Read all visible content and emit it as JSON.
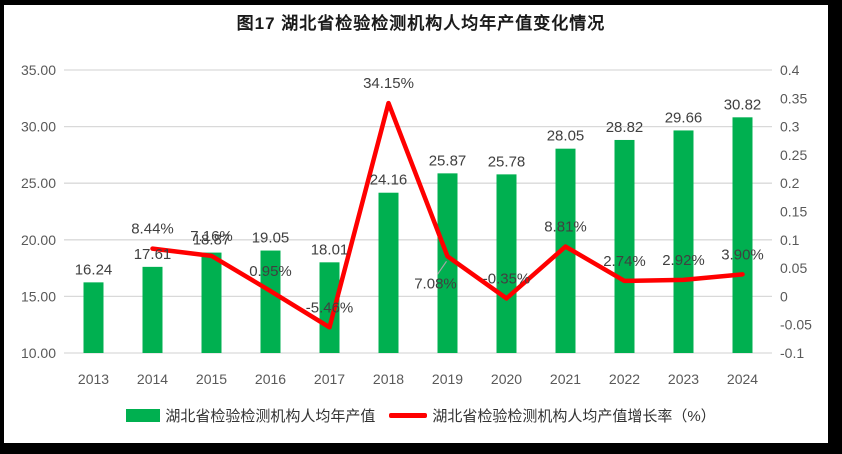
{
  "chart_data": {
    "type": "bar",
    "title": "图17 湖北省检验检测机构人均年产值变化情况",
    "categories": [
      "2013",
      "2014",
      "2015",
      "2016",
      "2017",
      "2018",
      "2019",
      "2020",
      "2021",
      "2022",
      "2023",
      "2024"
    ],
    "series": [
      {
        "name": "湖北省检验检测机构人均年产值",
        "type": "bar",
        "axis": "left",
        "color": "#00B050",
        "values": [
          16.24,
          17.61,
          18.87,
          19.05,
          18.01,
          24.16,
          25.87,
          25.78,
          28.05,
          28.82,
          29.66,
          30.82
        ],
        "labels": [
          "16.24",
          "17.61",
          "18.87",
          "19.05",
          "18.01",
          "24.16",
          "25.87",
          "25.78",
          "28.05",
          "28.82",
          "29.66",
          "30.82"
        ]
      },
      {
        "name": "湖北省检验检测机构人均产值增长率（%）",
        "type": "line",
        "axis": "right",
        "color": "#FF0000",
        "values": [
          null,
          0.0844,
          0.0716,
          0.0095,
          -0.0546,
          0.3415,
          0.0708,
          -0.0035,
          0.0881,
          0.0274,
          0.0292,
          0.039
        ],
        "labels": [
          "",
          "8.44%",
          "7.16%",
          "0.95%",
          "-5.46%",
          "34.15%",
          "7.08%",
          "-0.35%",
          "8.81%",
          "2.74%",
          "2.92%",
          "3.90%"
        ]
      }
    ],
    "left_axis": {
      "min": 10,
      "max": 35,
      "ticks": [
        "35.00",
        "30.00",
        "25.00",
        "20.00",
        "15.00",
        "10.00"
      ]
    },
    "right_axis": {
      "min": -0.1,
      "max": 0.4,
      "ticks": [
        "0.4",
        "0.35",
        "0.3",
        "0.25",
        "0.2",
        "0.15",
        "0.1",
        "0.05",
        "0",
        "-0.05",
        "-0.1"
      ]
    },
    "grid": true,
    "legend_position": "bottom",
    "colors": {
      "grid": "#D9D9D9",
      "axis_text": "#595959",
      "label_text": "#404040",
      "leader_line": "#A6A6A6"
    }
  }
}
